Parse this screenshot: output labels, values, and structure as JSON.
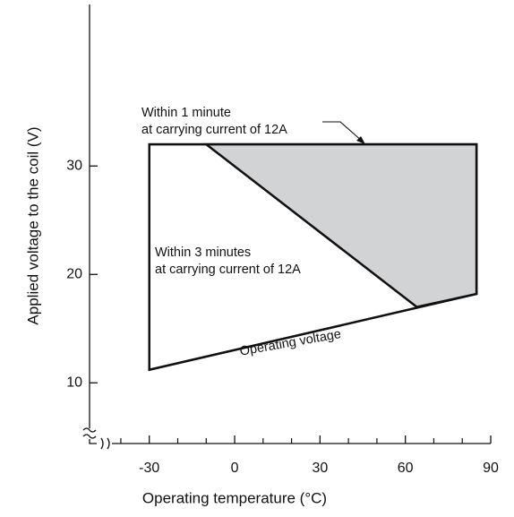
{
  "chart_data": {
    "type": "region",
    "xlabel": "Operating temperature (°C)",
    "ylabel": "Applied voltage to the coil (V)",
    "xlim": [
      -51,
      90
    ],
    "ylim": [
      4.4,
      44.9
    ],
    "xticks": [
      -30,
      0,
      30,
      60,
      90
    ],
    "xminor_ticks": [
      -40,
      -20,
      -10,
      10,
      20,
      40,
      50,
      70,
      80
    ],
    "yticks": [
      10,
      20,
      30
    ],
    "polygons": [
      {
        "x": [
          -30,
          85,
          85,
          -30
        ],
        "y": [
          32,
          32,
          18.2,
          11.2
        ],
        "fill": "#ffffff"
      },
      {
        "x": [
          -10,
          85,
          85,
          64
        ],
        "y": [
          32,
          32,
          18.2,
          17
        ],
        "fill": "#d1d3d4"
      }
    ],
    "lines": [
      {
        "x": [
          -10,
          64
        ],
        "y": [
          32,
          17
        ]
      }
    ],
    "annotations": [
      [
        "Within 1 minute",
        "at carrying current of 12A"
      ],
      [
        "Within 3 minutes",
        "at carrying current of 12A"
      ],
      [
        "Operating voltage"
      ]
    ]
  }
}
